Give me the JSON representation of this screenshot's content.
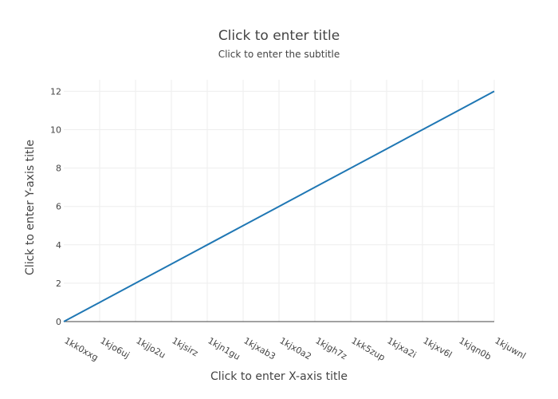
{
  "chart_data": {
    "type": "line",
    "title": "Click to enter title",
    "subtitle": "Click to enter the subtitle",
    "xlabel": "Click to enter X-axis title",
    "ylabel": "Click to enter Y-axis title",
    "categories": [
      "1kk0xxg",
      "1kjo6uj",
      "1kjjo2u",
      "1kjsirz",
      "1kjn1gu",
      "1kjxab3",
      "1kjx0a2",
      "1kjgh7z",
      "1kk5zup",
      "1kjxa2i",
      "1kjxv6l",
      "1kjqn0b",
      "1kjuwnl"
    ],
    "series": [
      {
        "values": [
          0,
          1,
          2,
          3,
          4,
          5,
          6,
          7,
          8,
          9,
          10,
          11,
          12
        ],
        "color": "#1f77b4"
      }
    ],
    "ylim": [
      0,
      12.6
    ],
    "yticks": [
      0,
      2,
      4,
      6,
      8,
      10,
      12
    ],
    "grid": true,
    "legend": "none"
  }
}
